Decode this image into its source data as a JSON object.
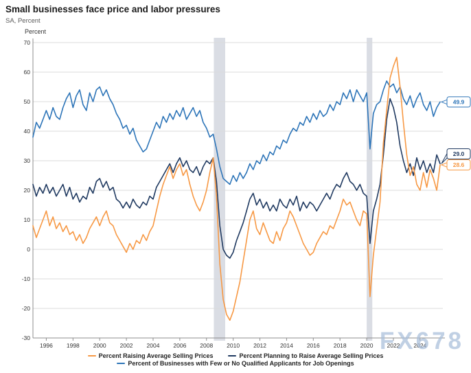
{
  "header": {
    "title": "Small businesses face price and labor pressures",
    "subtitle": "SA, Percent"
  },
  "watermark": "FX678",
  "chart_data": {
    "type": "line",
    "title": "Small businesses face price and labor pressures",
    "subtitle": "SA, Percent",
    "ylabel": "Percent",
    "ylim": [
      -30,
      70
    ],
    "y_ticks": [
      70,
      60,
      50,
      40,
      30,
      20,
      10,
      0,
      -10,
      -20,
      -30
    ],
    "x_start": 1995.0,
    "x_step": 0.25,
    "x_end": 2025.5,
    "x_ticks": [
      1996,
      1998,
      2000,
      2002,
      2004,
      2006,
      2008,
      2010,
      2012,
      2014,
      2016,
      2018,
      2020,
      2022,
      2024
    ],
    "grid": true,
    "legend_position": "bottom",
    "recession_bands": [
      {
        "from": 2008.55,
        "to": 2009.4
      },
      {
        "from": 2020.0,
        "to": 2020.42
      }
    ],
    "series": [
      {
        "name": "Percent Raising Average Selling Prices",
        "color": "#F79843",
        "end_label": "28.6",
        "values": [
          8,
          4,
          7,
          10,
          13,
          8,
          11,
          7,
          9,
          6,
          8,
          5,
          6,
          3,
          5,
          2,
          4,
          7,
          9,
          11,
          8,
          11,
          13,
          9,
          8,
          5,
          3,
          1,
          -1,
          2,
          0,
          3,
          2,
          5,
          3,
          6,
          8,
          13,
          18,
          22,
          25,
          28,
          24,
          27,
          29,
          25,
          27,
          22,
          18,
          15,
          13,
          16,
          20,
          26,
          31,
          18,
          -5,
          -17,
          -22,
          -24,
          -21,
          -16,
          -11,
          -4,
          3,
          10,
          13,
          7,
          5,
          9,
          6,
          3,
          2,
          6,
          3,
          7,
          9,
          13,
          11,
          8,
          5,
          2,
          0,
          -2,
          -1,
          2,
          4,
          6,
          5,
          8,
          7,
          10,
          13,
          17,
          15,
          16,
          13,
          10,
          8,
          13,
          12,
          -16,
          -2,
          7,
          16,
          36,
          47,
          58,
          62,
          65,
          55,
          43,
          32,
          25,
          28,
          22,
          20,
          26,
          21,
          27,
          24,
          20,
          28.6
        ]
      },
      {
        "name": "Percent Planning to Raise Average Selling Prices",
        "color": "#1F3960",
        "end_label": "29.0",
        "values": [
          22,
          18,
          21,
          19,
          22,
          19,
          21,
          18,
          20,
          22,
          18,
          21,
          17,
          19,
          16,
          18,
          17,
          21,
          19,
          23,
          24,
          21,
          23,
          20,
          21,
          17,
          16,
          14,
          16,
          14,
          17,
          15,
          14,
          16,
          15,
          18,
          17,
          21,
          23,
          25,
          27,
          29,
          26,
          29,
          31,
          28,
          30,
          27,
          26,
          28,
          25,
          28,
          30,
          29,
          31,
          23,
          8,
          0,
          -2,
          -3,
          -1,
          3,
          6,
          9,
          13,
          17,
          19,
          15,
          17,
          14,
          16,
          13,
          15,
          13,
          17,
          15,
          14,
          17,
          15,
          18,
          13,
          16,
          14,
          16,
          15,
          13,
          15,
          17,
          19,
          17,
          20,
          22,
          21,
          24,
          26,
          23,
          22,
          20,
          22,
          19,
          18,
          2,
          13,
          17,
          22,
          32,
          44,
          51,
          48,
          43,
          35,
          30,
          26,
          29,
          25,
          31,
          27,
          30,
          26,
          29,
          26,
          32,
          29.0
        ]
      },
      {
        "name": "Percent of Businesses with Few or No Qualified Applicants for Job Openings",
        "color": "#2C74B8",
        "end_label": "49.9",
        "values": [
          38,
          43,
          41,
          44,
          47,
          44,
          48,
          45,
          44,
          48,
          51,
          53,
          48,
          52,
          54,
          49,
          47,
          53,
          50,
          54,
          55,
          52,
          54,
          51,
          49,
          46,
          44,
          41,
          42,
          39,
          41,
          37,
          35,
          33,
          34,
          37,
          40,
          43,
          41,
          45,
          43,
          46,
          44,
          47,
          45,
          48,
          44,
          46,
          48,
          45,
          47,
          43,
          41,
          38,
          39,
          34,
          28,
          24,
          23,
          22,
          25,
          23,
          26,
          24,
          26,
          29,
          27,
          30,
          29,
          32,
          30,
          33,
          32,
          35,
          34,
          37,
          36,
          39,
          41,
          40,
          43,
          42,
          45,
          43,
          46,
          44,
          47,
          45,
          46,
          49,
          47,
          50,
          49,
          53,
          51,
          54,
          50,
          54,
          52,
          50,
          53,
          34,
          46,
          49,
          50,
          54,
          57,
          55,
          56,
          53,
          55,
          51,
          49,
          52,
          48,
          51,
          53,
          49,
          47,
          50,
          45,
          48,
          49.9
        ]
      }
    ],
    "style": {
      "grid_color": "#DBDBDB",
      "axis_color": "#8C8C8C",
      "tick_label_color": "#333333",
      "recession_band_color": "#DADDE4"
    }
  }
}
